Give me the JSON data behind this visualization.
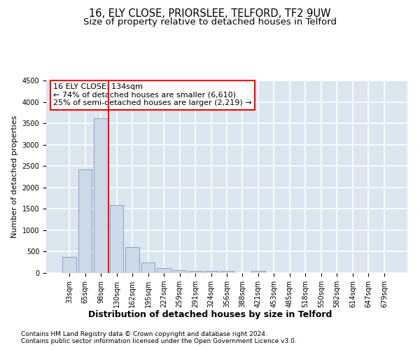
{
  "title1": "16, ELY CLOSE, PRIORSLEE, TELFORD, TF2 9UW",
  "title2": "Size of property relative to detached houses in Telford",
  "xlabel": "Distribution of detached houses by size in Telford",
  "ylabel": "Number of detached properties",
  "categories": [
    "33sqm",
    "65sqm",
    "98sqm",
    "130sqm",
    "162sqm",
    "195sqm",
    "227sqm",
    "259sqm",
    "291sqm",
    "324sqm",
    "356sqm",
    "388sqm",
    "421sqm",
    "453sqm",
    "485sqm",
    "518sqm",
    "550sqm",
    "582sqm",
    "614sqm",
    "647sqm",
    "679sqm"
  ],
  "values": [
    380,
    2420,
    3620,
    1580,
    600,
    240,
    110,
    60,
    50,
    50,
    50,
    0,
    50,
    0,
    0,
    0,
    0,
    0,
    0,
    0,
    0
  ],
  "bar_color": "#ccd9e8",
  "bar_edge_color": "#7399bb",
  "vline_color": "red",
  "vline_x_idx": 3,
  "annotation_text": "16 ELY CLOSE: 134sqm\n← 74% of detached houses are smaller (6,610)\n25% of semi-detached houses are larger (2,219) →",
  "annotation_box_color": "white",
  "annotation_box_edge": "red",
  "ylim": [
    0,
    4500
  ],
  "yticks": [
    0,
    500,
    1000,
    1500,
    2000,
    2500,
    3000,
    3500,
    4000,
    4500
  ],
  "background_color": "#dce6f0",
  "grid_color": "white",
  "footer1": "Contains HM Land Registry data © Crown copyright and database right 2024.",
  "footer2": "Contains public sector information licensed under the Open Government Licence v3.0.",
  "title1_fontsize": 10.5,
  "title2_fontsize": 9.5,
  "xlabel_fontsize": 9,
  "ylabel_fontsize": 8,
  "tick_fontsize": 7,
  "annotation_fontsize": 8,
  "footer_fontsize": 6.5
}
